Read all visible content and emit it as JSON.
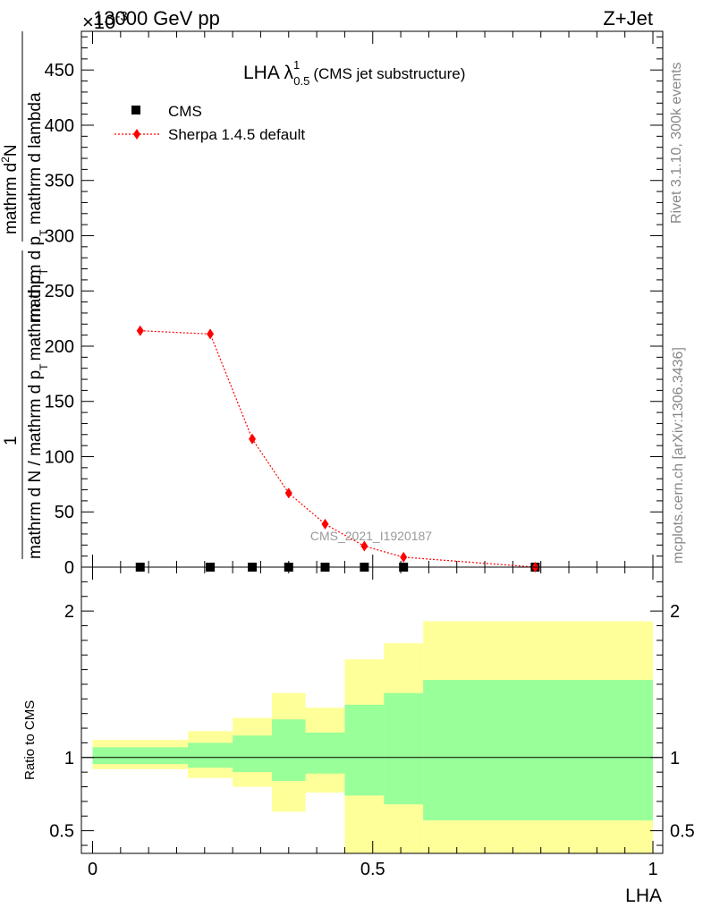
{
  "header": {
    "energy": "13000 GeV pp",
    "process": "Z+Jet",
    "exponent": "×10",
    "exponent_power": "-3"
  },
  "side_labels": {
    "rivet": "Rivet 3.1.10,  300k events",
    "mcplots": "mcplots.cern.ch [arXiv:1306.3436]"
  },
  "plot_title": {
    "main": "LHA λ",
    "sup": "1",
    "sub": "0.5",
    "paren": "(CMS jet substructure)"
  },
  "watermark": "CMS_2021_I1920187",
  "legend": {
    "cms": "CMS",
    "sherpa": "Sherpa 1.4.5 default"
  },
  "y_label": {
    "top_numer": "mathrm d",
    "top_numer_sup": "2",
    "top_numer_end": "N",
    "top_denom_a": "mathrm d p",
    "top_denom_a_sub": "T",
    "top_denom_b": " mathrm d lambda",
    "one": "1",
    "bottom_a": "mathrm d N / mathrm d p",
    "bottom_a_sub": "T",
    "bottom_b": "mathrm d p",
    "bottom_b_sub": "T"
  },
  "ratio_label": "Ratio to CMS",
  "x_label": "LHA",
  "colors": {
    "sherpa": "#ff0000",
    "band_inner": "#99ff99",
    "band_outer": "#ffff99",
    "data": "#000000"
  },
  "chart_data": {
    "type": "line",
    "xlabel": "LHA",
    "xlim": [
      0,
      1
    ],
    "main": {
      "ylim": [
        0,
        485
      ],
      "ytick_values": [
        0,
        50,
        100,
        150,
        200,
        250,
        300,
        350,
        400,
        450
      ],
      "ytick_labels": [
        "0",
        "50",
        "100",
        "150",
        "200",
        "250",
        "300",
        "350",
        "400",
        "450"
      ],
      "series": [
        {
          "name": "CMS",
          "marker": "square",
          "points": [
            [
              0.085,
              0
            ],
            [
              0.21,
              0
            ],
            [
              0.285,
              0
            ],
            [
              0.35,
              0
            ],
            [
              0.415,
              0
            ],
            [
              0.485,
              0
            ],
            [
              0.555,
              0
            ],
            [
              0.79,
              0
            ]
          ]
        },
        {
          "name": "Sherpa 1.4.5 default",
          "marker": "diamond",
          "points": [
            [
              0.085,
              214
            ],
            [
              0.21,
              211
            ],
            [
              0.285,
              116
            ],
            [
              0.35,
              67
            ],
            [
              0.415,
              39
            ],
            [
              0.485,
              19
            ],
            [
              0.555,
              9
            ],
            [
              0.79,
              0
            ]
          ]
        }
      ]
    },
    "ratio": {
      "ylim": [
        0.345,
        2.3
      ],
      "ytick_values": [
        0.5,
        1,
        2
      ],
      "ytick_labels": [
        "0.5",
        "1",
        "2"
      ],
      "bands": [
        {
          "x0": 0.0,
          "x1": 0.17,
          "inner": [
            0.955,
            1.07
          ],
          "outer": [
            0.92,
            1.12
          ]
        },
        {
          "x0": 0.17,
          "x1": 0.25,
          "inner": [
            0.93,
            1.1
          ],
          "outer": [
            0.86,
            1.18
          ]
        },
        {
          "x0": 0.25,
          "x1": 0.32,
          "inner": [
            0.9,
            1.15
          ],
          "outer": [
            0.8,
            1.27
          ]
        },
        {
          "x0": 0.32,
          "x1": 0.38,
          "inner": [
            0.84,
            1.26
          ],
          "outer": [
            0.63,
            1.44
          ]
        },
        {
          "x0": 0.38,
          "x1": 0.45,
          "inner": [
            0.89,
            1.17
          ],
          "outer": [
            0.76,
            1.34
          ]
        },
        {
          "x0": 0.45,
          "x1": 0.52,
          "inner": [
            0.74,
            1.36
          ],
          "outer": [
            0.345,
            1.67
          ]
        },
        {
          "x0": 0.52,
          "x1": 0.59,
          "inner": [
            0.68,
            1.44
          ],
          "outer": [
            0.345,
            1.78
          ]
        },
        {
          "x0": 0.59,
          "x1": 1.0,
          "inner": [
            0.57,
            1.53
          ],
          "outer": [
            0.345,
            1.93
          ]
        }
      ]
    },
    "xtick_values": [
      0,
      0.5,
      1
    ],
    "xtick_labels": [
      "0",
      "0.5",
      "1"
    ]
  }
}
